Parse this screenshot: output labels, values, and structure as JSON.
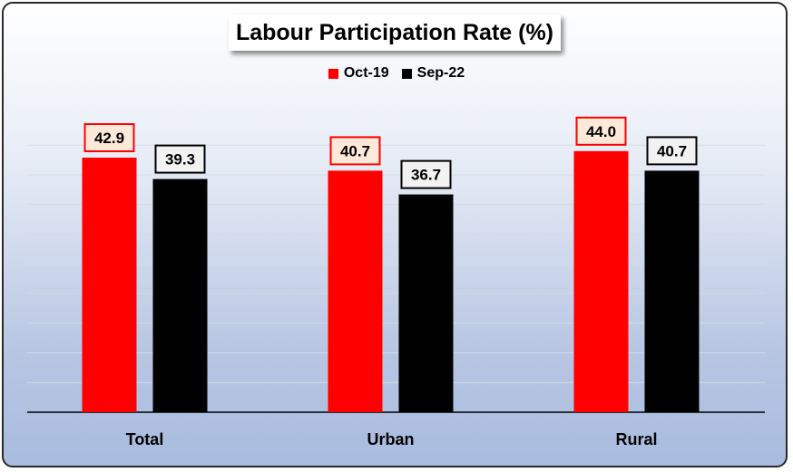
{
  "chart_data": {
    "type": "bar",
    "title": "Labour Participation Rate (%)",
    "categories": [
      "Total",
      "Urban",
      "Rural"
    ],
    "series": [
      {
        "name": "Oct-19",
        "values": [
          42.9,
          40.7,
          44.0
        ],
        "color": "#ff0000",
        "label_border": "#ff0000",
        "label_fill": "#fde9d9"
      },
      {
        "name": "Sep-22",
        "values": [
          39.3,
          36.7,
          40.7
        ],
        "color": "#000000",
        "label_border": "#000000",
        "label_fill": "#f2f2f2"
      }
    ],
    "value_labels": [
      [
        "42.9",
        "40.7",
        "44.0"
      ],
      [
        "39.3",
        "36.7",
        "40.7"
      ]
    ],
    "ylim": [
      0,
      50
    ],
    "grid": true,
    "legend_position": "top",
    "y_axis_visible": false
  }
}
